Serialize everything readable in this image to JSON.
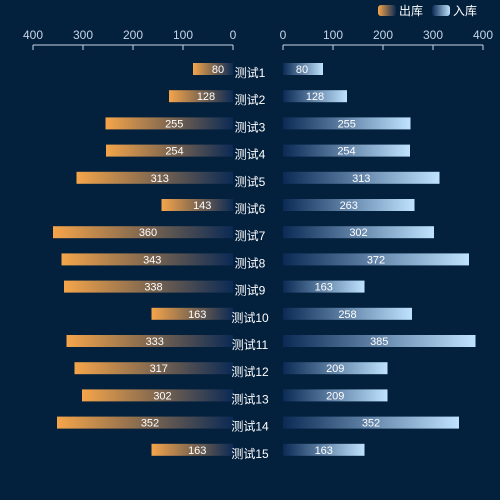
{
  "colors": {
    "background": "#03203d",
    "out_start": "#f5a54a",
    "out_end": "#0b2a55",
    "in_start": "#0b2a55",
    "in_end": "#bfe3ff",
    "axis": "#c8d4e6",
    "category_text": "#ffffff",
    "value_text": "#ffffff",
    "legend_text": "#ffffff"
  },
  "chart_data": {
    "type": "bar",
    "orientation": "horizontal-mirrored",
    "categories": [
      "测试1",
      "测试2",
      "测试3",
      "测试4",
      "测试5",
      "测试6",
      "测试7",
      "测试8",
      "测试9",
      "测试10",
      "测试11",
      "测试12",
      "测试13",
      "测试14",
      "测试15"
    ],
    "series": [
      {
        "name": "出库",
        "side": "left",
        "values": [
          80,
          128,
          255,
          254,
          313,
          143,
          360,
          343,
          338,
          163,
          333,
          317,
          302,
          352,
          163
        ]
      },
      {
        "name": "入库",
        "side": "right",
        "values": [
          80,
          128,
          255,
          254,
          313,
          263,
          302,
          372,
          163,
          258,
          385,
          209,
          209,
          352,
          163
        ]
      }
    ],
    "left_axis": {
      "ticks": [
        "400",
        "300",
        "200",
        "100",
        "0"
      ],
      "range": [
        0,
        400
      ],
      "reversed": true
    },
    "right_axis": {
      "ticks": [
        "0",
        "100",
        "200",
        "300",
        "400"
      ],
      "range": [
        0,
        400
      ]
    },
    "legend": {
      "position": "top-right"
    },
    "grid": false,
    "data_labels": true
  }
}
